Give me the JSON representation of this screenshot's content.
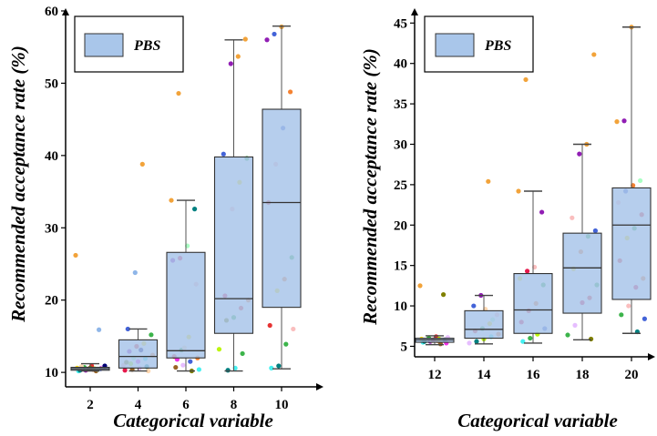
{
  "chart_data": [
    {
      "type": "box",
      "xlabel": "Categorical variable",
      "ylabel": "Recommended acceptance rate (%)",
      "legend": {
        "position": "top-left",
        "entries": [
          "PBS"
        ]
      },
      "box_color": "#a9c6ea",
      "ylim": [
        8,
        60
      ],
      "yticks": [
        10,
        20,
        30,
        40,
        50,
        60
      ],
      "categories": [
        "2",
        "4",
        "6",
        "8",
        "10"
      ],
      "boxes": [
        {
          "category": "2",
          "min": 10.2,
          "q1": 10.3,
          "median": 10.5,
          "q3": 10.7,
          "max": 11.2
        },
        {
          "category": "4",
          "min": 10.2,
          "q1": 10.6,
          "median": 12.2,
          "q3": 14.5,
          "max": 16.0
        },
        {
          "category": "6",
          "min": 10.2,
          "q1": 12.0,
          "median": 13.0,
          "q3": 26.6,
          "max": 33.8
        },
        {
          "category": "8",
          "min": 10.2,
          "q1": 15.4,
          "median": 20.2,
          "q3": 39.8,
          "max": 56.0
        },
        {
          "category": "10",
          "min": 10.5,
          "q1": 19.0,
          "median": 33.5,
          "q3": 46.4,
          "max": 57.9
        }
      ],
      "points": [
        [
          [
            26.2,
            "#f2a33a"
          ],
          [
            15.9,
            "#8fb6e8"
          ],
          [
            10.9,
            "#e63333"
          ],
          [
            10.7,
            "#3cb44b"
          ],
          [
            10.6,
            "#ffe119"
          ],
          [
            10.5,
            "#4363d8"
          ],
          [
            10.4,
            "#f58231"
          ],
          [
            10.3,
            "#911eb4"
          ],
          [
            10.2,
            "#46f0f0"
          ],
          [
            10.6,
            "#f032e6"
          ],
          [
            10.5,
            "#bcf60c"
          ],
          [
            10.4,
            "#fabebe"
          ],
          [
            10.3,
            "#008080"
          ],
          [
            10.7,
            "#e6beff"
          ],
          [
            10.2,
            "#9a6324"
          ],
          [
            10.5,
            "#e6194b"
          ],
          [
            10.8,
            "#ffd8b1"
          ],
          [
            10.9,
            "#000075"
          ],
          [
            10.4,
            "#aaffc3"
          ],
          [
            10.6,
            "#808000"
          ]
        ],
        [
          [
            38.8,
            "#f2a33a"
          ],
          [
            23.8,
            "#8fb6e8"
          ],
          [
            16.0,
            "#4363d8"
          ],
          [
            15.2,
            "#3cb44b"
          ],
          [
            14.0,
            "#ffe119"
          ],
          [
            13.6,
            "#e63333"
          ],
          [
            12.9,
            "#911eb4"
          ],
          [
            12.4,
            "#f58231"
          ],
          [
            11.9,
            "#46f0f0"
          ],
          [
            11.5,
            "#f032e6"
          ],
          [
            11.2,
            "#bcf60c"
          ],
          [
            11.0,
            "#fabebe"
          ],
          [
            10.8,
            "#008080"
          ],
          [
            10.6,
            "#e6beff"
          ],
          [
            10.4,
            "#9a6324"
          ],
          [
            10.3,
            "#e6194b"
          ],
          [
            10.2,
            "#ffd8b1"
          ],
          [
            13.1,
            "#000075"
          ],
          [
            12.0,
            "#aaffc3"
          ],
          [
            11.4,
            "#808000"
          ]
        ],
        [
          [
            48.6,
            "#f2a33a"
          ],
          [
            33.8,
            "#f2a33a"
          ],
          [
            32.6,
            "#008080"
          ],
          [
            27.5,
            "#aaffc3"
          ],
          [
            25.8,
            "#e6194b"
          ],
          [
            25.5,
            "#911eb4"
          ],
          [
            22.2,
            "#fabebe"
          ],
          [
            14.9,
            "#ffe119"
          ],
          [
            13.1,
            "#3cb44b"
          ],
          [
            12.2,
            "#e63333"
          ],
          [
            12.0,
            "#f58231"
          ],
          [
            11.5,
            "#4363d8"
          ],
          [
            11.0,
            "#e6beff"
          ],
          [
            10.7,
            "#9a6324"
          ],
          [
            10.4,
            "#46f0f0"
          ],
          [
            10.2,
            "#808000"
          ],
          [
            13.4,
            "#ffd8b1"
          ],
          [
            11.8,
            "#f032e6"
          ]
        ],
        [
          [
            56.1,
            "#f2a33a"
          ],
          [
            53.7,
            "#f2a33a"
          ],
          [
            52.7,
            "#911eb4"
          ],
          [
            40.2,
            "#4363d8"
          ],
          [
            39.6,
            "#3cb44b"
          ],
          [
            36.3,
            "#ffe119"
          ],
          [
            32.6,
            "#fabebe"
          ],
          [
            20.6,
            "#e6194b"
          ],
          [
            20.0,
            "#f58231"
          ],
          [
            18.9,
            "#e63333"
          ],
          [
            17.6,
            "#3cb44b"
          ],
          [
            17.2,
            "#808000"
          ],
          [
            13.2,
            "#bcf60c"
          ],
          [
            12.6,
            "#3cb44b"
          ],
          [
            10.6,
            "#46f0f0"
          ],
          [
            10.3,
            "#008080"
          ]
        ],
        [
          [
            57.8,
            "#f2a33a"
          ],
          [
            56.8,
            "#4363d8"
          ],
          [
            56.0,
            "#911eb4"
          ],
          [
            48.8,
            "#f58231"
          ],
          [
            43.8,
            "#4363d8"
          ],
          [
            38.8,
            "#fabebe"
          ],
          [
            33.5,
            "#e63333"
          ],
          [
            25.9,
            "#3cb44b"
          ],
          [
            22.9,
            "#f58231"
          ],
          [
            21.3,
            "#ffe119"
          ],
          [
            16.5,
            "#e63333"
          ],
          [
            16.0,
            "#fabebe"
          ],
          [
            13.9,
            "#3cb44b"
          ],
          [
            10.9,
            "#008080"
          ],
          [
            10.6,
            "#46f0f0"
          ]
        ]
      ]
    },
    {
      "type": "box",
      "xlabel": "Categorical variable",
      "ylabel": "Recommended acceptance rate (%)",
      "legend": {
        "position": "top-left",
        "entries": [
          "PBS"
        ]
      },
      "box_color": "#a9c6ea",
      "ylim": [
        3.7,
        46.5
      ],
      "yticks": [
        5,
        10,
        15,
        20,
        25,
        30,
        35,
        40,
        45
      ],
      "categories": [
        "12",
        "14",
        "16",
        "18",
        "20"
      ],
      "boxes": [
        {
          "category": "12",
          "min": 5.2,
          "q1": 5.5,
          "median": 5.8,
          "q3": 6.0,
          "max": 6.3
        },
        {
          "category": "14",
          "min": 5.3,
          "q1": 6.0,
          "median": 7.1,
          "q3": 9.4,
          "max": 11.3
        },
        {
          "category": "16",
          "min": 5.4,
          "q1": 6.6,
          "median": 9.5,
          "q3": 14.0,
          "max": 24.2
        },
        {
          "category": "18",
          "min": 5.8,
          "q1": 9.1,
          "median": 14.7,
          "q3": 19.0,
          "max": 30.0
        },
        {
          "category": "20",
          "min": 6.6,
          "q1": 10.8,
          "median": 20.0,
          "q3": 24.6,
          "max": 44.5
        }
      ],
      "points": [
        [
          [
            12.5,
            "#f2a33a"
          ],
          [
            11.4,
            "#808000"
          ],
          [
            6.2,
            "#e63333"
          ],
          [
            6.0,
            "#3cb44b"
          ],
          [
            5.9,
            "#ffe119"
          ],
          [
            5.8,
            "#4363d8"
          ],
          [
            5.7,
            "#f58231"
          ],
          [
            5.6,
            "#911eb4"
          ],
          [
            5.5,
            "#46f0f0"
          ],
          [
            5.4,
            "#f032e6"
          ],
          [
            5.9,
            "#bcf60c"
          ],
          [
            5.7,
            "#fabebe"
          ],
          [
            5.6,
            "#008080"
          ],
          [
            6.1,
            "#e6beff"
          ],
          [
            5.3,
            "#9a6324"
          ],
          [
            5.8,
            "#e6194b"
          ]
        ],
        [
          [
            25.4,
            "#f2a33a"
          ],
          [
            11.3,
            "#911eb4"
          ],
          [
            10.0,
            "#4363d8"
          ],
          [
            8.9,
            "#fabebe"
          ],
          [
            7.8,
            "#ffe119"
          ],
          [
            7.2,
            "#3cb44b"
          ],
          [
            6.9,
            "#e63333"
          ],
          [
            6.5,
            "#f58231"
          ],
          [
            6.2,
            "#46f0f0"
          ],
          [
            5.9,
            "#bcf60c"
          ],
          [
            5.6,
            "#008080"
          ],
          [
            5.4,
            "#e6beff"
          ],
          [
            8.3,
            "#aaffc3"
          ],
          [
            9.6,
            "#ffd8b1"
          ]
        ],
        [
          [
            38.0,
            "#f2a33a"
          ],
          [
            24.2,
            "#f2a33a"
          ],
          [
            21.6,
            "#911eb4"
          ],
          [
            14.8,
            "#fabebe"
          ],
          [
            14.3,
            "#e6194b"
          ],
          [
            13.4,
            "#ffe119"
          ],
          [
            12.6,
            "#3cb44b"
          ],
          [
            10.3,
            "#f58231"
          ],
          [
            9.4,
            "#e63333"
          ],
          [
            8.0,
            "#e6194b"
          ],
          [
            7.2,
            "#4363d8"
          ],
          [
            6.5,
            "#bcf60c"
          ],
          [
            6.0,
            "#3cb44b"
          ],
          [
            5.6,
            "#46f0f0"
          ]
        ],
        [
          [
            41.1,
            "#f2a33a"
          ],
          [
            30.0,
            "#f2a33a"
          ],
          [
            28.8,
            "#911eb4"
          ],
          [
            20.9,
            "#fabebe"
          ],
          [
            19.3,
            "#4363d8"
          ],
          [
            18.6,
            "#3cb44b"
          ],
          [
            16.7,
            "#f58231"
          ],
          [
            14.6,
            "#ffe119"
          ],
          [
            12.6,
            "#3cb44b"
          ],
          [
            11.0,
            "#e63333"
          ],
          [
            10.4,
            "#e6194b"
          ],
          [
            7.6,
            "#e6beff"
          ],
          [
            6.4,
            "#3cb44b"
          ],
          [
            5.9,
            "#808000"
          ]
        ],
        [
          [
            44.5,
            "#f2a33a"
          ],
          [
            32.9,
            "#911eb4"
          ],
          [
            32.8,
            "#f2a33a"
          ],
          [
            25.5,
            "#aaffc3"
          ],
          [
            24.9,
            "#f58231"
          ],
          [
            24.2,
            "#4363d8"
          ],
          [
            22.8,
            "#fabebe"
          ],
          [
            21.3,
            "#e63333"
          ],
          [
            19.6,
            "#3cb44b"
          ],
          [
            18.4,
            "#ffe119"
          ],
          [
            15.6,
            "#e63333"
          ],
          [
            13.4,
            "#f58231"
          ],
          [
            12.3,
            "#e6194b"
          ],
          [
            10.0,
            "#fabebe"
          ],
          [
            8.9,
            "#3cb44b"
          ],
          [
            8.4,
            "#4363d8"
          ],
          [
            6.8,
            "#008080"
          ]
        ]
      ]
    }
  ]
}
